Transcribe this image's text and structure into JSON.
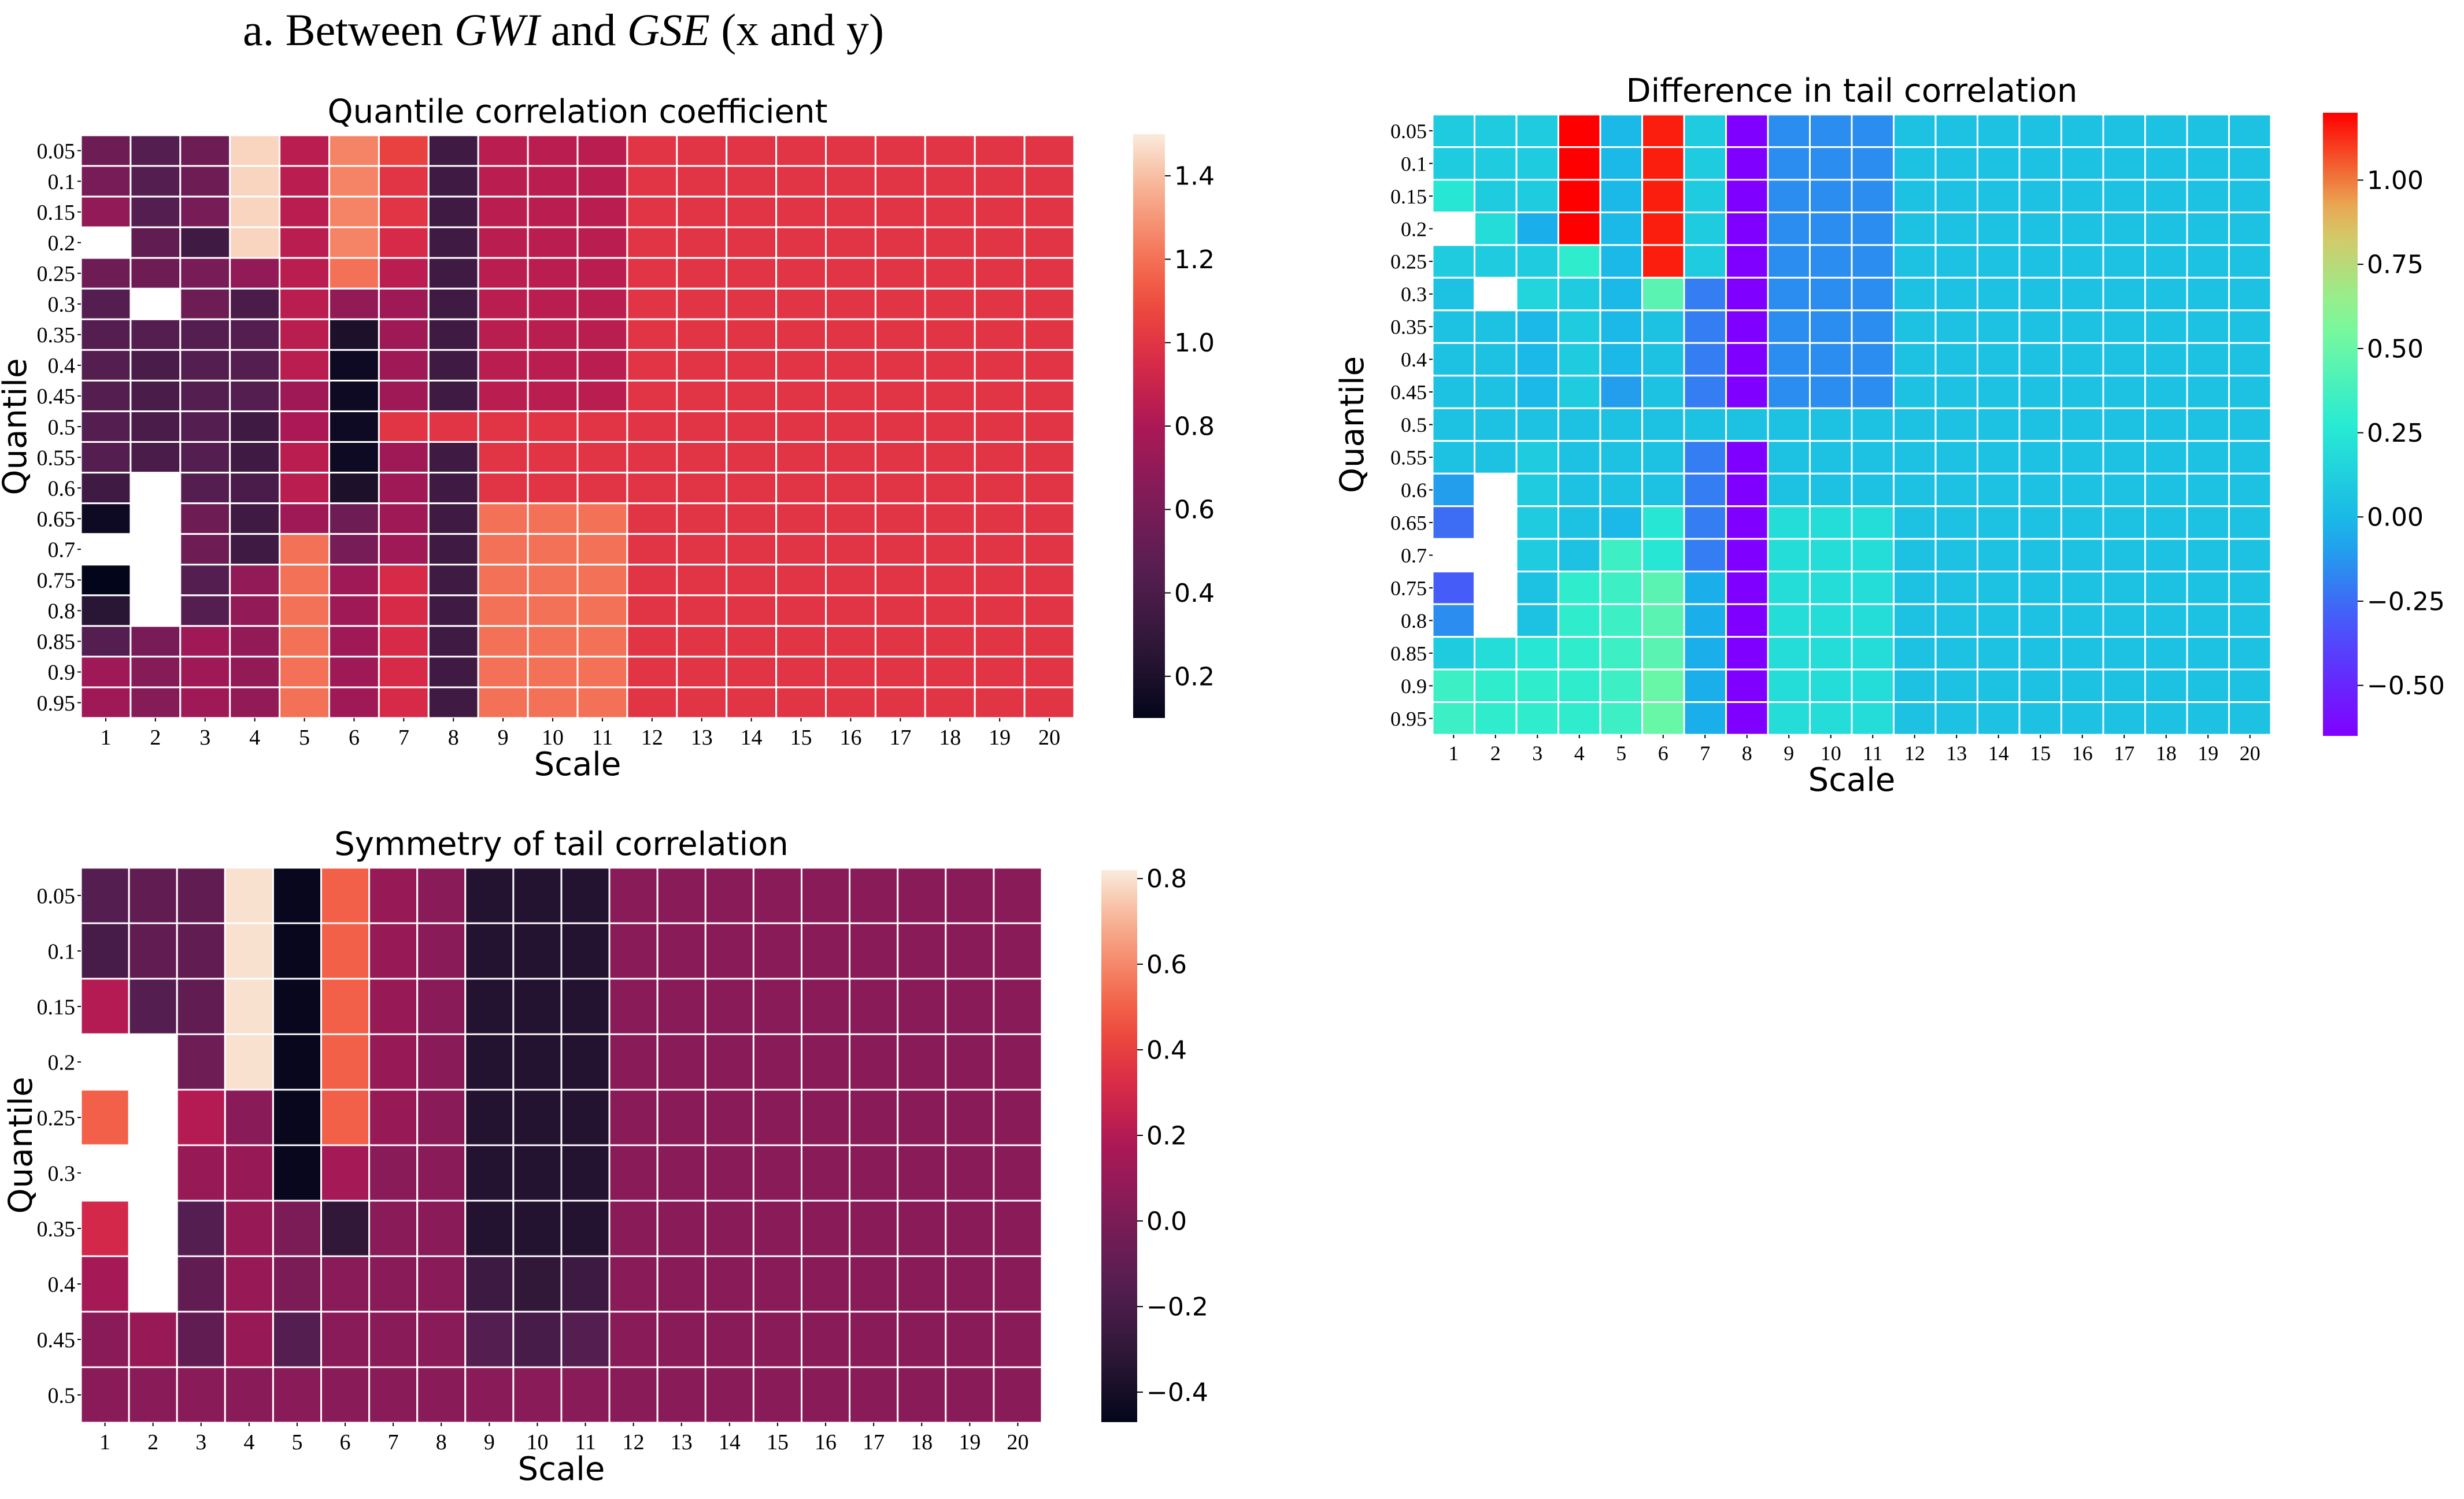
{
  "figure": {
    "suptitle_prefix": "a. Between ",
    "suptitle_var1": "GWI",
    "suptitle_mid": " and ",
    "suptitle_var2": "GSE",
    "suptitle_suffix": " (x and y)"
  },
  "chart_data": [
    {
      "type": "heatmap",
      "id": "qcc",
      "title": "Quantile correlation coefficient",
      "xlabel": "Scale",
      "ylabel": "Quantile",
      "x": [
        "1",
        "2",
        "3",
        "4",
        "5",
        "6",
        "7",
        "8",
        "9",
        "10",
        "11",
        "12",
        "13",
        "14",
        "15",
        "16",
        "17",
        "18",
        "19",
        "20"
      ],
      "y": [
        "0.05",
        "0.1",
        "0.15",
        "0.2",
        "0.25",
        "0.3",
        "0.35",
        "0.4",
        "0.45",
        "0.5",
        "0.55",
        "0.6",
        "0.65",
        "0.7",
        "0.75",
        "0.8",
        "0.85",
        "0.9",
        "0.95"
      ],
      "colormap": "rocket",
      "vmin": 0.1,
      "vmax": 1.5,
      "colorbar_ticks": [
        0.2,
        0.4,
        0.6,
        0.8,
        1.0,
        1.2,
        1.4
      ],
      "colorbar_labels": [
        "0.2",
        "0.4",
        "0.6",
        "0.8",
        "1.0",
        "1.2",
        "1.4"
      ],
      "values": [
        [
          0.55,
          0.45,
          0.55,
          1.45,
          0.85,
          1.25,
          1.05,
          0.35,
          0.85,
          0.85,
          0.85,
          1.0,
          1.0,
          1.0,
          1.0,
          1.0,
          1.0,
          1.0,
          1.0,
          1.0
        ],
        [
          0.6,
          0.45,
          0.55,
          1.45,
          0.85,
          1.25,
          1.0,
          0.35,
          0.85,
          0.85,
          0.85,
          1.0,
          1.0,
          1.0,
          1.0,
          1.0,
          1.0,
          1.0,
          1.0,
          1.0
        ],
        [
          0.7,
          0.45,
          0.6,
          1.45,
          0.85,
          1.25,
          1.0,
          0.35,
          0.85,
          0.85,
          0.85,
          1.0,
          1.0,
          1.0,
          1.0,
          1.0,
          1.0,
          1.0,
          1.0,
          1.0
        ],
        [
          null,
          0.5,
          0.35,
          1.45,
          0.85,
          1.25,
          0.95,
          0.35,
          0.85,
          0.85,
          0.85,
          1.0,
          1.0,
          1.0,
          1.0,
          1.0,
          1.0,
          1.0,
          1.0,
          1.0
        ],
        [
          0.55,
          0.55,
          0.6,
          0.7,
          0.85,
          1.2,
          0.85,
          0.35,
          0.85,
          0.85,
          0.85,
          1.0,
          1.0,
          1.0,
          1.0,
          1.0,
          1.0,
          1.0,
          1.0,
          1.0
        ],
        [
          0.45,
          null,
          0.55,
          0.4,
          0.85,
          0.7,
          0.75,
          0.35,
          0.85,
          0.85,
          0.85,
          1.0,
          1.0,
          1.0,
          1.0,
          1.0,
          1.0,
          1.0,
          1.0,
          1.0
        ],
        [
          0.45,
          0.45,
          0.45,
          0.45,
          0.85,
          0.2,
          0.75,
          0.35,
          0.85,
          0.85,
          0.85,
          1.0,
          1.0,
          1.0,
          1.0,
          1.0,
          1.0,
          1.0,
          1.0,
          1.0
        ],
        [
          0.45,
          0.4,
          0.45,
          0.45,
          0.85,
          0.15,
          0.75,
          0.35,
          0.85,
          0.85,
          0.85,
          1.0,
          1.0,
          1.0,
          1.0,
          1.0,
          1.0,
          1.0,
          1.0,
          1.0
        ],
        [
          0.45,
          0.4,
          0.45,
          0.45,
          0.75,
          0.15,
          0.75,
          0.35,
          0.85,
          0.85,
          0.85,
          1.0,
          1.0,
          1.0,
          1.0,
          1.0,
          1.0,
          1.0,
          1.0,
          1.0
        ],
        [
          0.45,
          0.4,
          0.45,
          0.35,
          0.8,
          0.15,
          1.0,
          1.0,
          1.0,
          1.0,
          1.0,
          1.0,
          1.0,
          1.0,
          1.0,
          1.0,
          1.0,
          1.0,
          1.0,
          1.0
        ],
        [
          0.45,
          0.4,
          0.45,
          0.35,
          0.85,
          0.15,
          0.75,
          0.35,
          1.0,
          1.0,
          1.0,
          1.0,
          1.0,
          1.0,
          1.0,
          1.0,
          1.0,
          1.0,
          1.0,
          1.0
        ],
        [
          0.35,
          null,
          0.45,
          0.4,
          0.85,
          0.2,
          0.75,
          0.35,
          1.0,
          1.0,
          1.0,
          1.0,
          1.0,
          1.0,
          1.0,
          1.0,
          1.0,
          1.0,
          1.0,
          1.0
        ],
        [
          0.15,
          null,
          0.55,
          0.35,
          0.75,
          0.55,
          0.75,
          0.35,
          1.2,
          1.2,
          1.2,
          1.0,
          1.0,
          1.0,
          1.0,
          1.0,
          1.0,
          1.0,
          1.0,
          1.0
        ],
        [
          null,
          null,
          0.55,
          0.35,
          1.2,
          0.6,
          0.75,
          0.35,
          1.2,
          1.2,
          1.2,
          1.0,
          1.0,
          1.0,
          1.0,
          1.0,
          1.0,
          1.0,
          1.0,
          1.0
        ],
        [
          0.1,
          null,
          0.45,
          0.7,
          1.2,
          0.75,
          0.95,
          0.35,
          1.2,
          1.2,
          1.2,
          1.0,
          1.0,
          1.0,
          1.0,
          1.0,
          1.0,
          1.0,
          1.0,
          1.0
        ],
        [
          0.25,
          null,
          0.45,
          0.7,
          1.2,
          0.75,
          0.95,
          0.35,
          1.2,
          1.2,
          1.2,
          1.0,
          1.0,
          1.0,
          1.0,
          1.0,
          1.0,
          1.0,
          1.0,
          1.0
        ],
        [
          0.45,
          0.6,
          0.75,
          0.7,
          1.2,
          0.75,
          0.95,
          0.35,
          1.2,
          1.2,
          1.2,
          1.0,
          1.0,
          1.0,
          1.0,
          1.0,
          1.0,
          1.0,
          1.0,
          1.0
        ],
        [
          0.75,
          0.65,
          0.75,
          0.7,
          1.2,
          0.75,
          0.95,
          0.35,
          1.2,
          1.2,
          1.2,
          1.0,
          1.0,
          1.0,
          1.0,
          1.0,
          1.0,
          1.0,
          1.0,
          1.0
        ],
        [
          0.75,
          0.65,
          0.75,
          0.7,
          1.2,
          0.75,
          0.95,
          0.35,
          1.2,
          1.2,
          1.2,
          1.0,
          1.0,
          1.0,
          1.0,
          1.0,
          1.0,
          1.0,
          1.0,
          1.0
        ]
      ]
    },
    {
      "type": "heatmap",
      "id": "diff",
      "title": "Difference in tail correlation",
      "xlabel": "Scale",
      "ylabel": "Quantile",
      "x": [
        "1",
        "2",
        "3",
        "4",
        "5",
        "6",
        "7",
        "8",
        "9",
        "10",
        "11",
        "12",
        "13",
        "14",
        "15",
        "16",
        "17",
        "18",
        "19",
        "20"
      ],
      "y": [
        "0.05",
        "0.1",
        "0.15",
        "0.2",
        "0.25",
        "0.3",
        "0.35",
        "0.4",
        "0.45",
        "0.5",
        "0.55",
        "0.6",
        "0.65",
        "0.7",
        "0.75",
        "0.8",
        "0.85",
        "0.9",
        "0.95"
      ],
      "colormap": "rainbow",
      "vmin": -0.65,
      "vmax": 1.2,
      "colorbar_ticks": [
        1.0,
        0.75,
        0.5,
        0.25,
        0.0,
        -0.25,
        -0.5
      ],
      "colorbar_labels": [
        "1.00",
        "0.75",
        "0.50",
        "0.25",
        "0.00",
        "−0.25",
        "−0.50"
      ],
      "values": [
        [
          0.1,
          0.1,
          0.1,
          1.2,
          0.0,
          1.15,
          0.1,
          -0.65,
          -0.15,
          -0.15,
          -0.15,
          0.05,
          0.05,
          0.05,
          0.05,
          0.05,
          0.05,
          0.05,
          0.05,
          0.05
        ],
        [
          0.1,
          0.1,
          0.1,
          1.2,
          0.0,
          1.15,
          0.1,
          -0.65,
          -0.15,
          -0.15,
          -0.15,
          0.05,
          0.05,
          0.05,
          0.05,
          0.05,
          0.05,
          0.05,
          0.05,
          0.05
        ],
        [
          0.25,
          0.1,
          0.1,
          1.2,
          0.0,
          1.15,
          0.1,
          -0.65,
          -0.15,
          -0.15,
          -0.15,
          0.05,
          0.05,
          0.05,
          0.05,
          0.05,
          0.05,
          0.05,
          0.05,
          0.05
        ],
        [
          null,
          0.2,
          -0.05,
          1.2,
          0.0,
          1.15,
          0.1,
          -0.65,
          -0.15,
          -0.15,
          -0.15,
          0.05,
          0.05,
          0.05,
          0.05,
          0.05,
          0.05,
          0.05,
          0.05,
          0.05
        ],
        [
          0.1,
          0.1,
          0.1,
          0.3,
          0.0,
          1.15,
          0.1,
          -0.65,
          -0.15,
          -0.15,
          -0.15,
          0.05,
          0.05,
          0.05,
          0.05,
          0.05,
          0.05,
          0.05,
          0.05,
          0.05
        ],
        [
          0.05,
          null,
          0.15,
          0.1,
          0.0,
          0.45,
          -0.2,
          -0.65,
          -0.15,
          -0.15,
          -0.15,
          0.05,
          0.05,
          0.05,
          0.05,
          0.05,
          0.05,
          0.05,
          0.05,
          0.05
        ],
        [
          0.05,
          0.05,
          0.0,
          0.1,
          0.0,
          0.05,
          -0.2,
          -0.65,
          -0.15,
          -0.15,
          -0.15,
          0.05,
          0.05,
          0.05,
          0.05,
          0.05,
          0.05,
          0.05,
          0.05,
          0.05
        ],
        [
          0.05,
          0.05,
          0.0,
          0.1,
          0.0,
          0.05,
          -0.2,
          -0.65,
          -0.15,
          -0.15,
          -0.15,
          0.05,
          0.05,
          0.05,
          0.05,
          0.05,
          0.05,
          0.05,
          0.05,
          0.05
        ],
        [
          0.05,
          0.05,
          0.0,
          0.1,
          -0.1,
          0.05,
          -0.2,
          -0.65,
          -0.15,
          -0.15,
          -0.15,
          0.05,
          0.05,
          0.05,
          0.05,
          0.05,
          0.05,
          0.05,
          0.05,
          0.05
        ],
        [
          0.05,
          0.05,
          0.05,
          0.05,
          0.05,
          0.05,
          0.05,
          0.05,
          0.05,
          0.05,
          0.05,
          0.05,
          0.05,
          0.05,
          0.05,
          0.05,
          0.05,
          0.05,
          0.05,
          0.05
        ],
        [
          0.05,
          0.05,
          0.1,
          0.05,
          0.05,
          0.05,
          -0.2,
          -0.65,
          0.05,
          0.05,
          0.05,
          0.05,
          0.05,
          0.05,
          0.05,
          0.05,
          0.05,
          0.05,
          0.05,
          0.05
        ],
        [
          -0.1,
          null,
          0.1,
          0.05,
          0.05,
          0.05,
          -0.2,
          -0.65,
          0.05,
          0.05,
          0.05,
          0.05,
          0.05,
          0.05,
          0.05,
          0.05,
          0.05,
          0.05,
          0.05,
          0.05
        ],
        [
          -0.25,
          null,
          0.1,
          0.05,
          0.0,
          0.25,
          -0.2,
          -0.65,
          0.2,
          0.2,
          0.2,
          0.05,
          0.05,
          0.05,
          0.05,
          0.05,
          0.05,
          0.05,
          0.05,
          0.05
        ],
        [
          null,
          null,
          0.1,
          0.05,
          0.35,
          0.25,
          -0.2,
          -0.65,
          0.2,
          0.2,
          0.2,
          0.05,
          0.05,
          0.05,
          0.05,
          0.05,
          0.05,
          0.05,
          0.05,
          0.05
        ],
        [
          -0.3,
          null,
          0.05,
          0.3,
          0.35,
          0.45,
          -0.05,
          -0.65,
          0.2,
          0.2,
          0.2,
          0.05,
          0.05,
          0.05,
          0.05,
          0.05,
          0.05,
          0.05,
          0.05,
          0.05
        ],
        [
          -0.15,
          null,
          0.05,
          0.3,
          0.35,
          0.45,
          -0.05,
          -0.65,
          0.2,
          0.2,
          0.2,
          0.05,
          0.05,
          0.05,
          0.05,
          0.05,
          0.05,
          0.05,
          0.05,
          0.05
        ],
        [
          0.1,
          0.2,
          0.25,
          0.3,
          0.35,
          0.45,
          -0.05,
          -0.65,
          0.2,
          0.2,
          0.2,
          0.05,
          0.05,
          0.05,
          0.05,
          0.05,
          0.05,
          0.05,
          0.05,
          0.05
        ],
        [
          0.35,
          0.3,
          0.3,
          0.3,
          0.35,
          0.5,
          -0.05,
          -0.65,
          0.2,
          0.2,
          0.2,
          0.05,
          0.05,
          0.05,
          0.05,
          0.05,
          0.05,
          0.05,
          0.05,
          0.05
        ],
        [
          0.35,
          0.3,
          0.3,
          0.3,
          0.35,
          0.5,
          -0.05,
          -0.65,
          0.2,
          0.2,
          0.2,
          0.05,
          0.05,
          0.05,
          0.05,
          0.05,
          0.05,
          0.05,
          0.05,
          0.05
        ]
      ]
    },
    {
      "type": "heatmap",
      "id": "sym",
      "title": "Symmetry of tail correlation",
      "xlabel": "Scale",
      "ylabel": "Quantile",
      "x": [
        "1",
        "2",
        "3",
        "4",
        "5",
        "6",
        "7",
        "8",
        "9",
        "10",
        "11",
        "12",
        "13",
        "14",
        "15",
        "16",
        "17",
        "18",
        "19",
        "20"
      ],
      "y": [
        "0.05",
        "0.1",
        "0.15",
        "0.2",
        "0.25",
        "0.3",
        "0.35",
        "0.4",
        "0.45",
        "0.5"
      ],
      "colormap": "rocket",
      "vmin": -0.47,
      "vmax": 0.82,
      "colorbar_ticks": [
        0.8,
        0.6,
        0.4,
        0.2,
        0.0,
        -0.2,
        -0.4
      ],
      "colorbar_labels": [
        "0.8",
        "0.6",
        "0.4",
        "0.2",
        "0.0",
        "−0.2",
        "−0.4"
      ],
      "values": [
        [
          -0.15,
          -0.1,
          -0.1,
          0.8,
          -0.45,
          0.5,
          0.1,
          0.05,
          -0.35,
          -0.35,
          -0.35,
          0.05,
          0.05,
          0.05,
          0.05,
          0.05,
          0.05,
          0.05,
          0.05,
          0.05
        ],
        [
          -0.2,
          -0.1,
          -0.1,
          0.8,
          -0.45,
          0.5,
          0.1,
          0.05,
          -0.35,
          -0.35,
          -0.35,
          0.05,
          0.05,
          0.05,
          0.05,
          0.05,
          0.05,
          0.05,
          0.05,
          0.05
        ],
        [
          0.2,
          -0.15,
          -0.1,
          0.8,
          -0.45,
          0.5,
          0.1,
          0.05,
          -0.35,
          -0.35,
          -0.35,
          0.05,
          0.05,
          0.05,
          0.05,
          0.05,
          0.05,
          0.05,
          0.05,
          0.05
        ],
        [
          null,
          null,
          -0.05,
          0.8,
          -0.45,
          0.5,
          0.1,
          0.05,
          -0.35,
          -0.35,
          -0.35,
          0.05,
          0.05,
          0.05,
          0.05,
          0.05,
          0.05,
          0.05,
          0.05,
          0.05
        ],
        [
          0.5,
          null,
          0.2,
          0.05,
          -0.45,
          0.5,
          0.1,
          0.05,
          -0.35,
          -0.35,
          -0.35,
          0.05,
          0.05,
          0.05,
          0.05,
          0.05,
          0.05,
          0.05,
          0.05,
          0.05
        ],
        [
          null,
          null,
          0.1,
          0.1,
          -0.45,
          0.15,
          0.05,
          0.05,
          -0.35,
          -0.35,
          -0.35,
          0.05,
          0.05,
          0.05,
          0.05,
          0.05,
          0.05,
          0.05,
          0.05,
          0.05
        ],
        [
          0.3,
          null,
          -0.15,
          0.1,
          0.0,
          -0.3,
          0.05,
          0.05,
          -0.35,
          -0.35,
          -0.35,
          0.05,
          0.05,
          0.05,
          0.05,
          0.05,
          0.05,
          0.05,
          0.05,
          0.05
        ],
        [
          0.15,
          null,
          -0.1,
          0.1,
          0.0,
          0.05,
          0.05,
          0.05,
          -0.25,
          -0.3,
          -0.25,
          0.05,
          0.05,
          0.05,
          0.05,
          0.05,
          0.05,
          0.05,
          0.05,
          0.05
        ],
        [
          0.05,
          0.1,
          -0.1,
          0.1,
          -0.15,
          0.05,
          0.05,
          0.05,
          -0.15,
          -0.2,
          -0.15,
          0.05,
          0.05,
          0.05,
          0.05,
          0.05,
          0.05,
          0.05,
          0.05,
          0.05
        ],
        [
          0.05,
          0.05,
          0.05,
          0.05,
          0.05,
          0.05,
          0.05,
          0.05,
          0.05,
          0.05,
          0.05,
          0.05,
          0.05,
          0.05,
          0.05,
          0.05,
          0.05,
          0.05,
          0.05,
          0.05
        ]
      ]
    }
  ]
}
